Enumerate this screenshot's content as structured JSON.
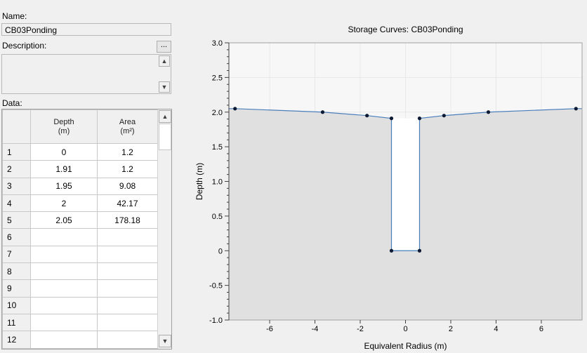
{
  "form": {
    "name_label": "Name:",
    "name_value": "CB03Ponding",
    "description_label": "Description:",
    "description_value": "",
    "ellipsis_label": "...",
    "data_label": "Data:"
  },
  "table": {
    "headers": [
      {
        "title": "Depth",
        "unit": "(m)"
      },
      {
        "title": "Area",
        "unit": "(m²)"
      }
    ],
    "rows": [
      {
        "n": "1",
        "depth": "0",
        "area": "1.2"
      },
      {
        "n": "2",
        "depth": "1.91",
        "area": "1.2"
      },
      {
        "n": "3",
        "depth": "1.95",
        "area": "9.08"
      },
      {
        "n": "4",
        "depth": "2",
        "area": "42.17"
      },
      {
        "n": "5",
        "depth": "2.05",
        "area": "178.18"
      },
      {
        "n": "6",
        "depth": "",
        "area": ""
      },
      {
        "n": "7",
        "depth": "",
        "area": ""
      },
      {
        "n": "8",
        "depth": "",
        "area": ""
      },
      {
        "n": "9",
        "depth": "",
        "area": ""
      },
      {
        "n": "10",
        "depth": "",
        "area": ""
      },
      {
        "n": "11",
        "depth": "",
        "area": ""
      },
      {
        "n": "12",
        "depth": "",
        "area": ""
      }
    ]
  },
  "icons": {
    "scroll_up": "scroll-up-arrow-icon",
    "scroll_down": "scroll-down-arrow-icon"
  },
  "chart_data": {
    "type": "line",
    "title": "Storage Curves: CB03Ponding",
    "xlabel": "Equivalent Radius (m)",
    "ylabel": "Depth (m)",
    "xlim": [
      -7.8,
      7.8
    ],
    "ylim": [
      -1.0,
      3.0
    ],
    "xticks": [
      -6,
      -4,
      -2,
      0,
      2,
      4,
      6
    ],
    "yticks": [
      -1.0,
      -0.5,
      0,
      0.5,
      1.0,
      1.5,
      2.0,
      2.5,
      3.0
    ],
    "ytick_labels": [
      "-1.0",
      "-0.5",
      "0",
      "0.5",
      "1.0",
      "1.5",
      "2.0",
      "2.5",
      "3.0"
    ],
    "grid": true,
    "points": [
      {
        "x": -7.53,
        "y": 2.05
      },
      {
        "x": -3.66,
        "y": 2.0
      },
      {
        "x": -1.7,
        "y": 1.95
      },
      {
        "x": -0.62,
        "y": 1.91
      },
      {
        "x": -0.62,
        "y": 0
      },
      {
        "x": 0.62,
        "y": 0
      },
      {
        "x": 0.62,
        "y": 1.91
      },
      {
        "x": 1.7,
        "y": 1.95
      },
      {
        "x": 3.66,
        "y": 2.0
      },
      {
        "x": 7.53,
        "y": 2.05
      }
    ],
    "colors": {
      "line": "#4a7ebb",
      "marker": "#0d1a33",
      "fill": "#e0e0e0",
      "plot_bg": "#f7f7f7",
      "grid": "#e8e8e8"
    }
  }
}
